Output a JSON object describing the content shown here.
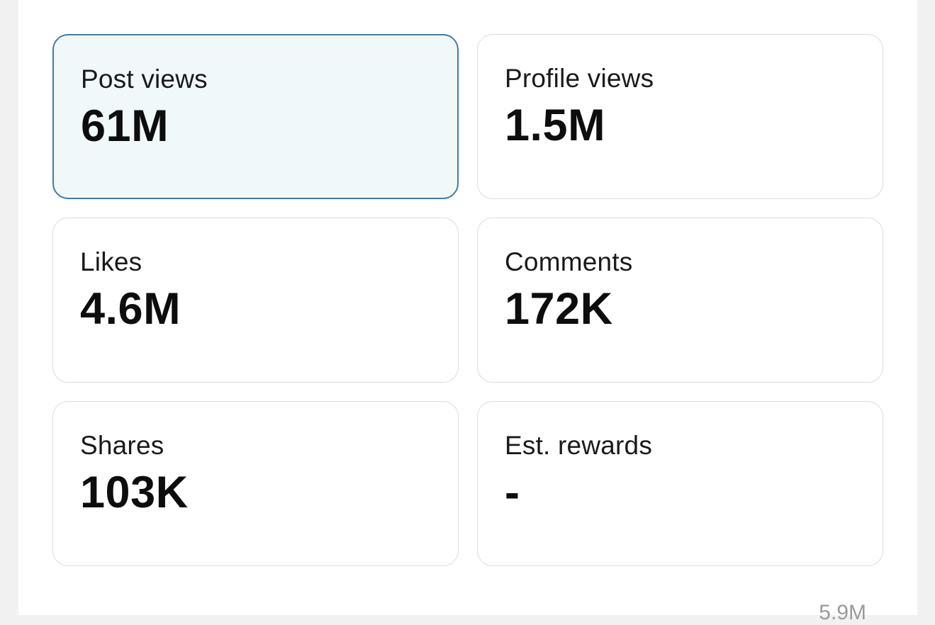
{
  "cards": [
    {
      "label": "Post views",
      "value": "61M",
      "selected": true
    },
    {
      "label": "Profile views",
      "value": "1.5M",
      "selected": false
    },
    {
      "label": "Likes",
      "value": "4.6M",
      "selected": false
    },
    {
      "label": "Comments",
      "value": "172K",
      "selected": false
    },
    {
      "label": "Shares",
      "value": "103K",
      "selected": false
    },
    {
      "label": "Est. rewards",
      "value": "-",
      "selected": false
    }
  ],
  "footer": {
    "partial_text": "5.9M"
  },
  "colors": {
    "selected_border": "#3f7fa0",
    "selected_background": "#f1f8fa",
    "card_border": "#dcdcdc"
  }
}
